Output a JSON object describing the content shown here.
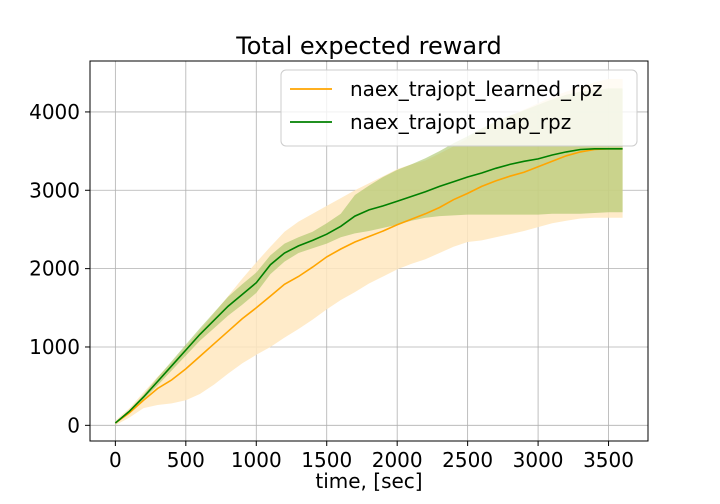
{
  "chart_data": {
    "type": "line",
    "title": "Total expected reward",
    "xlabel": "time, [sec]",
    "ylabel": "",
    "xlim": [
      -180,
      3780
    ],
    "ylim": [
      -200,
      4650
    ],
    "xticks": [
      0,
      500,
      1000,
      1500,
      2000,
      2500,
      3000,
      3500
    ],
    "yticks": [
      0,
      1000,
      2000,
      3000,
      4000
    ],
    "grid": true,
    "legend_position": "top-right",
    "series": [
      {
        "name": "naex_trajopt_learned_rpz",
        "color": "#ffa500",
        "band_color": "#ffe8bf",
        "x": [
          0,
          100,
          200,
          300,
          400,
          500,
          600,
          700,
          800,
          900,
          1000,
          1100,
          1200,
          1300,
          1400,
          1500,
          1600,
          1700,
          1800,
          1900,
          2000,
          2100,
          2200,
          2300,
          2400,
          2500,
          2600,
          2700,
          2800,
          2900,
          3000,
          3100,
          3200,
          3300,
          3400,
          3500,
          3600
        ],
        "y": [
          30,
          160,
          320,
          470,
          580,
          720,
          880,
          1040,
          1200,
          1360,
          1500,
          1650,
          1800,
          1900,
          2020,
          2150,
          2250,
          2340,
          2410,
          2480,
          2560,
          2630,
          2700,
          2780,
          2880,
          2960,
          3050,
          3120,
          3180,
          3230,
          3300,
          3370,
          3440,
          3490,
          3520,
          3530,
          3530
        ],
        "upper": [
          60,
          220,
          420,
          620,
          800,
          1000,
          1210,
          1430,
          1650,
          1870,
          2080,
          2280,
          2470,
          2600,
          2700,
          2800,
          2900,
          3000,
          3090,
          3180,
          3270,
          3330,
          3380,
          3470,
          3560,
          3660,
          3770,
          3870,
          3950,
          4030,
          4110,
          4190,
          4260,
          4320,
          4380,
          4420,
          4420
        ],
        "lower": [
          0,
          100,
          220,
          260,
          280,
          320,
          400,
          520,
          660,
          790,
          900,
          1000,
          1120,
          1230,
          1350,
          1480,
          1600,
          1700,
          1810,
          1900,
          1990,
          2060,
          2120,
          2200,
          2280,
          2340,
          2360,
          2400,
          2440,
          2480,
          2530,
          2580,
          2610,
          2640,
          2650,
          2650,
          2650
        ]
      },
      {
        "name": "naex_trajopt_map_rpz",
        "color": "#008000",
        "band_color": "#9fbf5a",
        "x": [
          0,
          100,
          200,
          300,
          400,
          500,
          600,
          700,
          800,
          900,
          1000,
          1100,
          1200,
          1300,
          1400,
          1500,
          1600,
          1700,
          1800,
          1900,
          2000,
          2100,
          2200,
          2300,
          2400,
          2500,
          2600,
          2700,
          2800,
          2900,
          3000,
          3100,
          3200,
          3300,
          3400,
          3500,
          3600
        ],
        "y": [
          30,
          180,
          360,
          560,
          760,
          960,
          1160,
          1340,
          1520,
          1670,
          1820,
          2050,
          2200,
          2290,
          2360,
          2440,
          2540,
          2670,
          2750,
          2800,
          2860,
          2920,
          2980,
          3050,
          3110,
          3170,
          3220,
          3280,
          3330,
          3370,
          3400,
          3450,
          3490,
          3520,
          3530,
          3530,
          3530
        ],
        "upper": [
          40,
          200,
          390,
          610,
          820,
          1030,
          1240,
          1440,
          1640,
          1800,
          1950,
          2170,
          2320,
          2400,
          2470,
          2580,
          2700,
          2940,
          3060,
          3170,
          3260,
          3330,
          3410,
          3500,
          3600,
          3690,
          3790,
          3880,
          3950,
          4020,
          4090,
          4160,
          4220,
          4260,
          4280,
          4300,
          4300
        ],
        "lower": [
          20,
          160,
          330,
          510,
          700,
          890,
          1080,
          1240,
          1400,
          1540,
          1690,
          1930,
          2090,
          2200,
          2260,
          2320,
          2400,
          2450,
          2480,
          2520,
          2560,
          2610,
          2650,
          2670,
          2680,
          2690,
          2690,
          2690,
          2690,
          2690,
          2690,
          2700,
          2700,
          2700,
          2710,
          2720,
          2720
        ]
      }
    ]
  }
}
